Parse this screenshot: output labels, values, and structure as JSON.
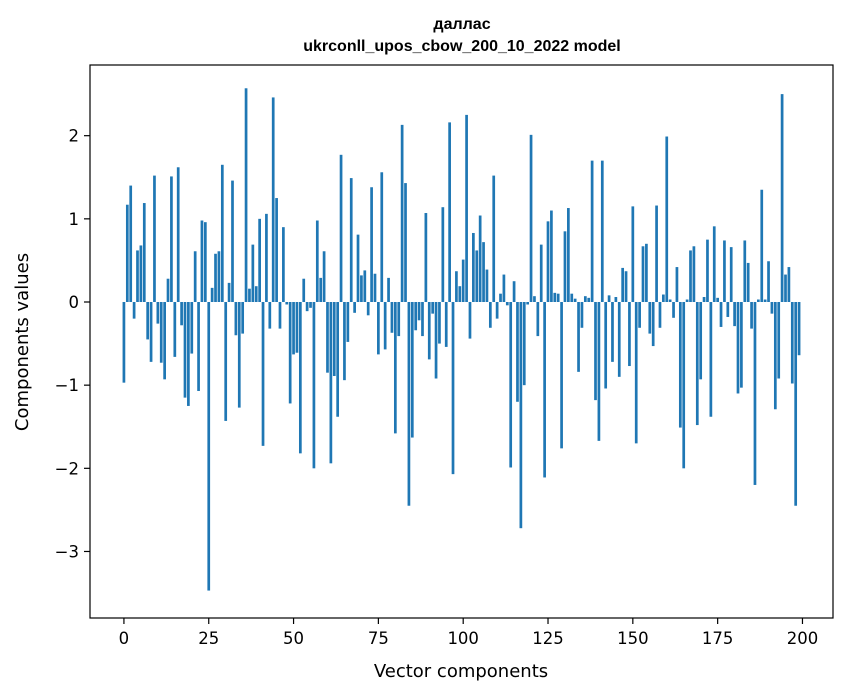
{
  "chart_data": {
    "type": "bar",
    "title_line1": "даллас",
    "title_line2": "ukrconll_upos_cbow_200_10_2022 model",
    "xlabel": "Vector components",
    "ylabel": "Components values",
    "xlim": [
      -10,
      209
    ],
    "ylim": [
      -3.8,
      2.85
    ],
    "xticks": [
      0,
      25,
      50,
      75,
      100,
      125,
      150,
      175,
      200
    ],
    "xtick_labels": [
      "0",
      "25",
      "50",
      "75",
      "100",
      "125",
      "150",
      "175",
      "200"
    ],
    "yticks": [
      -3,
      -2,
      -1,
      0,
      1,
      2
    ],
    "ytick_labels": [
      "−3",
      "−2",
      "−1",
      "0",
      "1",
      "2"
    ],
    "grid": false,
    "bar_color": "#1f77b4",
    "x": [
      0,
      1,
      2,
      3,
      4,
      5,
      6,
      7,
      8,
      9,
      10,
      11,
      12,
      13,
      14,
      15,
      16,
      17,
      18,
      19,
      20,
      21,
      22,
      23,
      24,
      25,
      26,
      27,
      28,
      29,
      30,
      31,
      32,
      33,
      34,
      35,
      36,
      37,
      38,
      39,
      40,
      41,
      42,
      43,
      44,
      45,
      46,
      47,
      48,
      49,
      50,
      51,
      52,
      53,
      54,
      55,
      56,
      57,
      58,
      59,
      60,
      61,
      62,
      63,
      64,
      65,
      66,
      67,
      68,
      69,
      70,
      71,
      72,
      73,
      74,
      75,
      76,
      77,
      78,
      79,
      80,
      81,
      82,
      83,
      84,
      85,
      86,
      87,
      88,
      89,
      90,
      91,
      92,
      93,
      94,
      95,
      96,
      97,
      98,
      99,
      100,
      101,
      102,
      103,
      104,
      105,
      106,
      107,
      108,
      109,
      110,
      111,
      112,
      113,
      114,
      115,
      116,
      117,
      118,
      119,
      120,
      121,
      122,
      123,
      124,
      125,
      126,
      127,
      128,
      129,
      130,
      131,
      132,
      133,
      134,
      135,
      136,
      137,
      138,
      139,
      140,
      141,
      142,
      143,
      144,
      145,
      146,
      147,
      148,
      149,
      150,
      151,
      152,
      153,
      154,
      155,
      156,
      157,
      158,
      159,
      160,
      161,
      162,
      163,
      164,
      165,
      166,
      167,
      168,
      169,
      170,
      171,
      172,
      173,
      174,
      175,
      176,
      177,
      178,
      179,
      180,
      181,
      182,
      183,
      184,
      185,
      186,
      187,
      188,
      189,
      190,
      191,
      192,
      193,
      194,
      195,
      196,
      197,
      198,
      199
    ],
    "values": [
      -0.97,
      1.17,
      1.4,
      -0.2,
      0.62,
      0.68,
      1.19,
      -0.45,
      -0.72,
      1.52,
      -0.26,
      -0.73,
      -0.93,
      0.28,
      1.51,
      -0.66,
      1.62,
      -0.28,
      -1.15,
      -1.25,
      -0.62,
      0.61,
      -1.07,
      0.98,
      0.96,
      -3.47,
      0.17,
      0.58,
      0.61,
      1.65,
      -1.43,
      0.23,
      1.46,
      -0.4,
      -1.27,
      -0.38,
      2.57,
      0.16,
      0.69,
      0.19,
      1.0,
      -1.73,
      1.06,
      -0.32,
      2.46,
      1.25,
      -0.32,
      0.9,
      -0.03,
      -1.22,
      -0.63,
      -0.61,
      -1.82,
      0.28,
      -0.11,
      -0.07,
      -2.0,
      0.98,
      0.29,
      0.61,
      -0.85,
      -1.94,
      -0.89,
      -1.38,
      1.77,
      -0.94,
      -0.48,
      1.49,
      -0.13,
      0.81,
      0.32,
      0.38,
      -0.16,
      1.38,
      0.34,
      -0.63,
      1.56,
      -0.57,
      0.29,
      -0.37,
      -1.58,
      -0.41,
      2.13,
      1.43,
      -2.45,
      -1.63,
      -0.34,
      -0.22,
      -0.41,
      1.07,
      -0.69,
      -0.14,
      -0.92,
      -0.5,
      1.14,
      -0.54,
      2.16,
      -2.07,
      0.37,
      0.19,
      0.51,
      2.25,
      -0.44,
      0.83,
      0.62,
      1.04,
      0.72,
      0.39,
      -0.31,
      1.52,
      -0.2,
      0.1,
      0.33,
      -0.04,
      -1.99,
      0.25,
      -1.2,
      -2.72,
      -1.0,
      -0.03,
      2.01,
      0.07,
      -0.41,
      0.69,
      -2.11,
      0.97,
      1.1,
      0.11,
      0.1,
      -1.76,
      0.85,
      1.13,
      0.1,
      0.04,
      -0.84,
      -0.31,
      0.07,
      0.05,
      1.7,
      -1.18,
      -1.67,
      1.7,
      -1.04,
      0.08,
      -0.72,
      0.06,
      -0.9,
      0.41,
      0.37,
      -0.77,
      1.15,
      -1.7,
      -0.31,
      0.67,
      0.7,
      -0.38,
      -0.53,
      1.16,
      -0.31,
      0.09,
      1.99,
      0.03,
      -0.19,
      0.42,
      -1.51,
      -2.0,
      0.03,
      0.62,
      0.67,
      -1.48,
      -0.93,
      0.06,
      0.75,
      -1.38,
      0.91,
      0.05,
      -0.3,
      0.74,
      -0.18,
      0.66,
      -0.29,
      -1.1,
      -1.03,
      0.74,
      0.47,
      -0.32,
      -2.2,
      0.03,
      1.35,
      0.03,
      0.49,
      -0.14,
      -1.29,
      -0.92,
      2.5,
      0.33,
      0.42,
      -0.98,
      -2.45,
      -0.64
    ]
  }
}
